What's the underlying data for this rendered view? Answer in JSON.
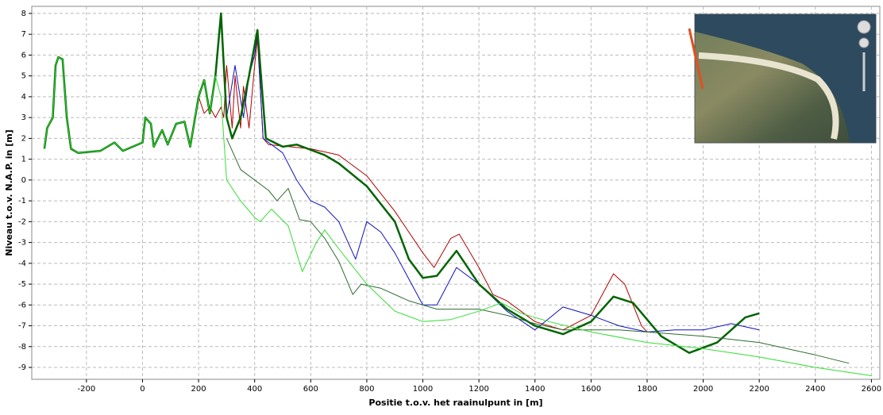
{
  "chart_data": {
    "type": "line",
    "x_label": "Positie t.o.v. het raainulpunt in [m]",
    "y_label": "Niveau t.o.v. N.A.P. in [m]",
    "xlim": [
      -395,
      2630
    ],
    "ylim": [
      -9.57,
      8.34
    ],
    "xticks": [
      -200,
      0,
      200,
      400,
      600,
      800,
      1000,
      1200,
      1400,
      1600,
      1800,
      2000,
      2200,
      2400,
      2600
    ],
    "yticks": [
      -9,
      -8,
      -7,
      -6,
      -5,
      -4,
      -3,
      -2,
      -1,
      0,
      1,
      2,
      3,
      4,
      5,
      6,
      7,
      8
    ],
    "grid": true,
    "series": [
      {
        "color": "#b00000",
        "width": 1,
        "x": [
          -350,
          -340,
          -320,
          -310,
          -300,
          -285,
          -270,
          -255,
          -230,
          -150,
          -100,
          -70,
          0,
          10,
          30,
          40,
          70,
          90,
          120,
          150,
          170,
          200,
          220,
          240,
          260,
          280,
          290,
          300,
          320,
          330,
          350,
          360,
          380,
          400,
          410,
          430,
          450,
          600,
          700,
          800,
          900,
          1000,
          1040,
          1100,
          1130,
          1200,
          1250,
          1300,
          1400,
          1500,
          1600,
          1680,
          1720,
          1780,
          1800
        ],
        "values": [
          1.5,
          2.5,
          3,
          5.5,
          5.9,
          5.8,
          3,
          1.5,
          1.3,
          1.4,
          1.8,
          1.4,
          1.8,
          3,
          2.7,
          1.6,
          2.4,
          1.7,
          2.7,
          2.8,
          1.6,
          4,
          3.2,
          3.5,
          3,
          3.5,
          3,
          5.5,
          2.5,
          5,
          2.5,
          4.5,
          2.5,
          5.5,
          6.8,
          2,
          1.7,
          1.5,
          1.2,
          0.2,
          -1.5,
          -3.5,
          -4.2,
          -2.8,
          -2.6,
          -4.2,
          -5.5,
          -5.8,
          -6.8,
          -7.2,
          -6.5,
          -4.5,
          -5,
          -7,
          -7.3
        ]
      },
      {
        "color": "#1010c0",
        "width": 1,
        "x": [
          300,
          330,
          360,
          380,
          400,
          410,
          430,
          500,
          550,
          600,
          650,
          700,
          760,
          800,
          850,
          900,
          1000,
          1050,
          1120,
          1200,
          1300,
          1400,
          1500,
          1600,
          1700,
          1800,
          1900,
          2000,
          2100,
          2200
        ],
        "values": [
          3,
          5.5,
          3,
          5,
          6,
          7,
          2,
          1.3,
          0,
          -1,
          -1.3,
          -2,
          -3.8,
          -2,
          -2.5,
          -3.5,
          -6,
          -6,
          -4.2,
          -5,
          -6.3,
          -7.2,
          -6.1,
          -6.5,
          -7,
          -7.3,
          -7.2,
          -7.2,
          -6.9,
          -7.2
        ]
      },
      {
        "color": "#006400",
        "width": 2.5,
        "x": [
          -350,
          -340,
          -320,
          -310,
          -300,
          -285,
          -270,
          -255,
          -230,
          -150,
          -100,
          -70,
          0,
          10,
          30,
          40,
          70,
          90,
          120,
          150,
          170,
          200,
          220,
          240,
          260,
          280,
          300,
          320,
          350,
          380,
          410,
          440,
          500,
          550,
          650,
          700,
          800,
          900,
          950,
          1000,
          1050,
          1120,
          1200,
          1300,
          1400,
          1500,
          1600,
          1680,
          1750,
          1850,
          1950,
          2050,
          2150,
          2200
        ],
        "values": [
          1.5,
          2.5,
          3,
          5.5,
          5.9,
          5.8,
          3,
          1.5,
          1.3,
          1.4,
          1.8,
          1.4,
          1.8,
          3,
          2.7,
          1.6,
          2.4,
          1.7,
          2.7,
          2.8,
          1.6,
          4,
          4.8,
          3.2,
          5,
          8,
          3,
          2,
          3,
          5,
          7.2,
          2,
          1.6,
          1.7,
          1.2,
          0.8,
          -0.3,
          -2,
          -3.8,
          -4.7,
          -4.6,
          -3.4,
          -5,
          -6.2,
          -7,
          -7.4,
          -6.8,
          -5.6,
          -5.9,
          -7.5,
          -8.3,
          -7.8,
          -6.6,
          -6.4
        ]
      },
      {
        "color": "#2e6b2e",
        "width": 1,
        "x": [
          300,
          350,
          450,
          480,
          520,
          560,
          600,
          650,
          700,
          750,
          780,
          850,
          950,
          1050,
          1200,
          1300,
          1400,
          1500,
          1700,
          2000,
          2200,
          2400,
          2520
        ],
        "values": [
          2,
          0.5,
          -0.5,
          -1,
          -0.4,
          -1.9,
          -2,
          -2.8,
          -3.9,
          -5.5,
          -5,
          -5.2,
          -5.8,
          -6.2,
          -6.2,
          -6.5,
          -6.9,
          -7.2,
          -7.2,
          -7.5,
          -7.8,
          -8.4,
          -8.8
        ]
      },
      {
        "color": "#33dd33",
        "width": 1,
        "x": [
          -350,
          -340,
          -320,
          -310,
          -300,
          -285,
          -270,
          -255,
          -230,
          -150,
          -100,
          -70,
          0,
          10,
          30,
          40,
          70,
          90,
          120,
          150,
          170,
          200,
          220,
          240,
          260,
          280,
          300,
          350,
          400,
          420,
          460,
          520,
          570,
          620,
          650,
          700,
          800,
          900,
          1000,
          1100,
          1200,
          1280,
          1350,
          1450,
          1600,
          1800,
          2000,
          2200,
          2400,
          2600
        ],
        "values": [
          1.5,
          2.5,
          3,
          5.5,
          5.9,
          5.8,
          3,
          1.5,
          1.3,
          1.4,
          1.8,
          1.4,
          1.8,
          3,
          2.7,
          1.6,
          2.4,
          1.7,
          2.7,
          2.8,
          1.6,
          4,
          4.8,
          3.2,
          5,
          4,
          0,
          -1,
          -1.8,
          -2,
          -1.4,
          -2.2,
          -4.4,
          -3,
          -2.4,
          -3.3,
          -5,
          -6.3,
          -6.8,
          -6.7,
          -6.3,
          -5.9,
          -6.4,
          -6.8,
          -7.3,
          -7.8,
          -8.1,
          -8.5,
          -9,
          -9.4
        ]
      }
    ]
  }
}
